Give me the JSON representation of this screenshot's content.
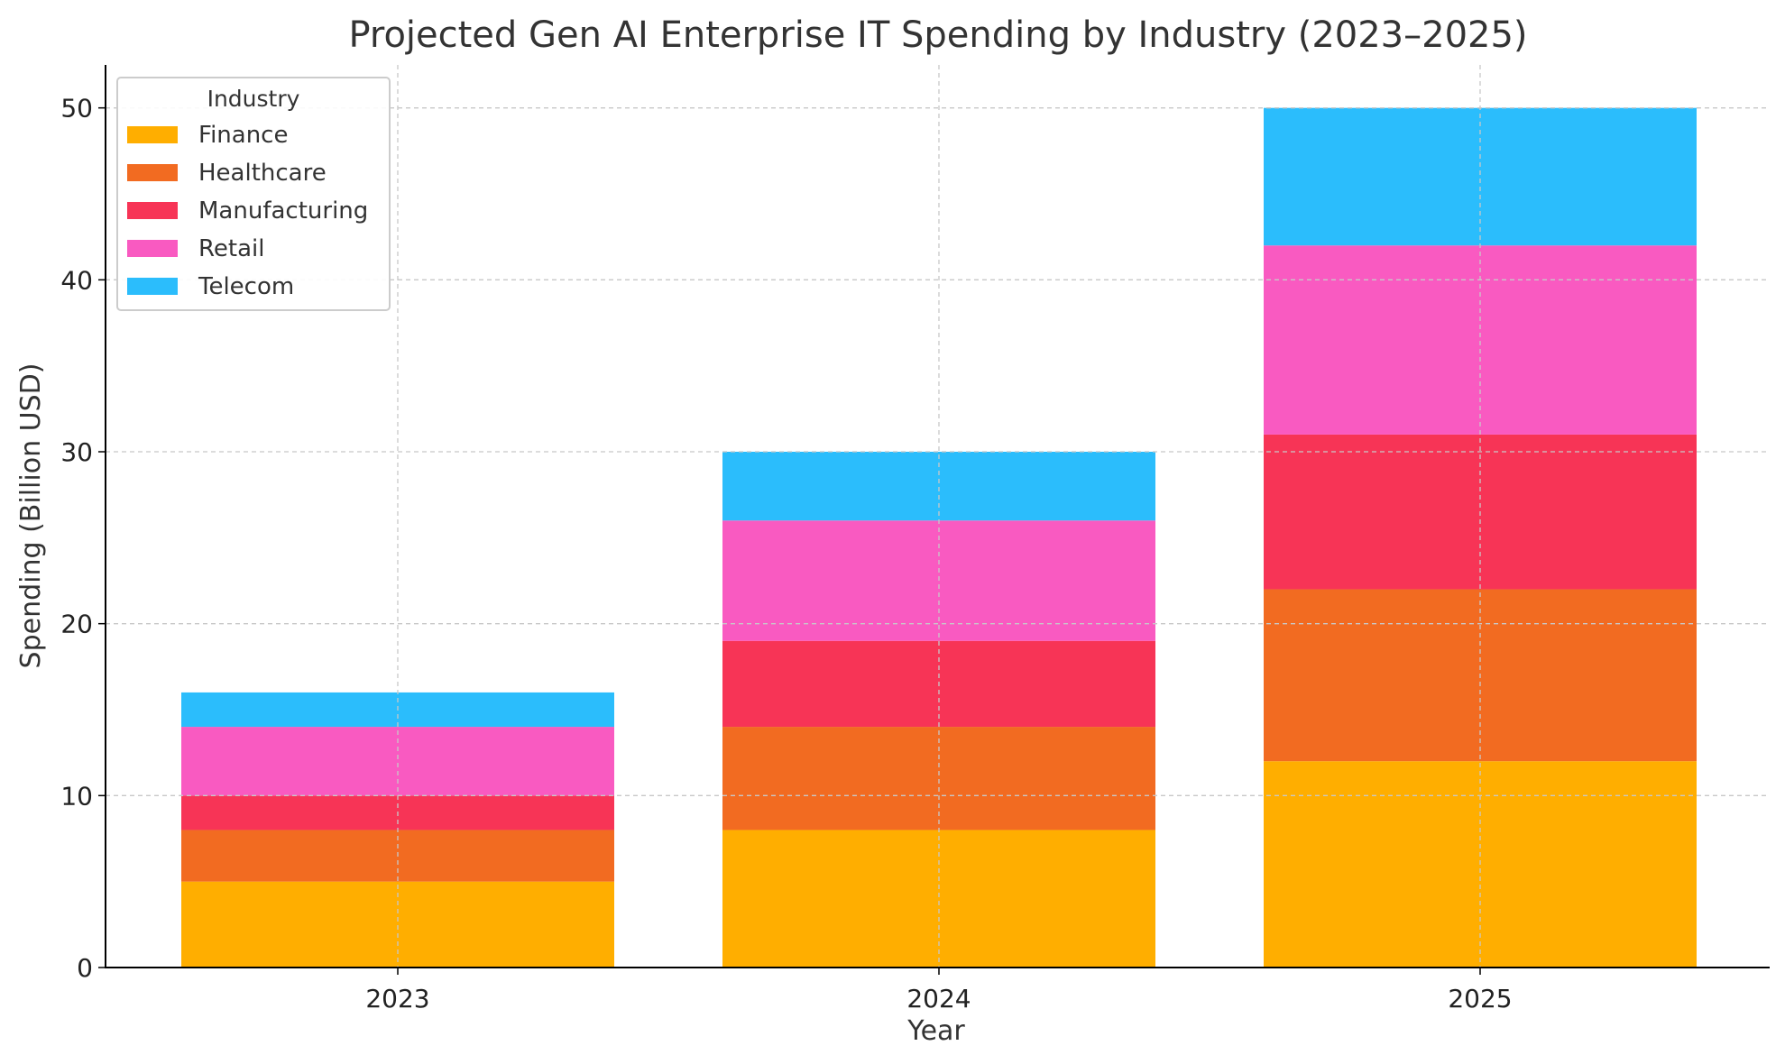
{
  "chart_data": {
    "type": "bar",
    "stacked": true,
    "title": "Projected Gen AI Enterprise IT Spending by Industry (2023–2025)",
    "xlabel": "Year",
    "ylabel": "Spending (Billion USD)",
    "categories": [
      "2023",
      "2024",
      "2025"
    ],
    "ylim": [
      0,
      52.5
    ],
    "yticks": [
      0,
      10,
      20,
      30,
      40,
      50
    ],
    "grid": true,
    "legend": {
      "title": "Industry",
      "position": "top-left"
    },
    "series": [
      {
        "name": "Finance",
        "color": "#FFAE00",
        "values": [
          5,
          8,
          12
        ]
      },
      {
        "name": "Healthcare",
        "color": "#F26B21",
        "values": [
          3,
          6,
          10
        ]
      },
      {
        "name": "Manufacturing",
        "color": "#F73456",
        "values": [
          2,
          5,
          9
        ]
      },
      {
        "name": "Retail",
        "color": "#F95AC1",
        "values": [
          4,
          7,
          11
        ]
      },
      {
        "name": "Telecom",
        "color": "#2BBDFC",
        "values": [
          2,
          4,
          8
        ]
      }
    ]
  }
}
